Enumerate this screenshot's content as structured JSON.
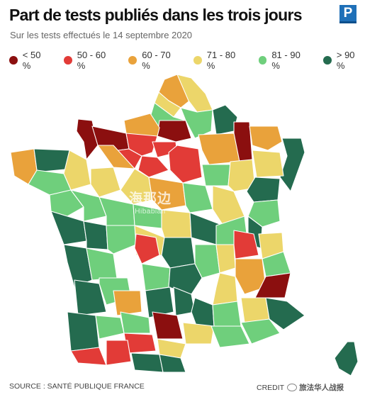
{
  "header": {
    "title": "Part de tests publiés dans les trois jours",
    "logo_letter": "P",
    "subtitle": "Sur les tests effectués le 14 septembre 2020"
  },
  "legend": [
    {
      "label": "< 50 %",
      "color": "#8b0f0f"
    },
    {
      "label": "50 - 60 %",
      "color": "#e23b37"
    },
    {
      "label": "60 - 70 %",
      "color": "#e9a23b"
    },
    {
      "label": "71 - 80 %",
      "color": "#ecd66a"
    },
    {
      "label": "81 - 90 %",
      "color": "#6fcf7c"
    },
    {
      "label": "> 90 %",
      "color": "#246b4f"
    }
  ],
  "watermark": {
    "main": "海那边",
    "sub": "Hibabian"
  },
  "footer": {
    "source": "SOURCE : SANTÉ PUBLIQUE FRANCE",
    "credit_prefix": "CREDIT",
    "credit_icon": "wechat-icon",
    "credit_channel": "旅法华人战报"
  }
}
